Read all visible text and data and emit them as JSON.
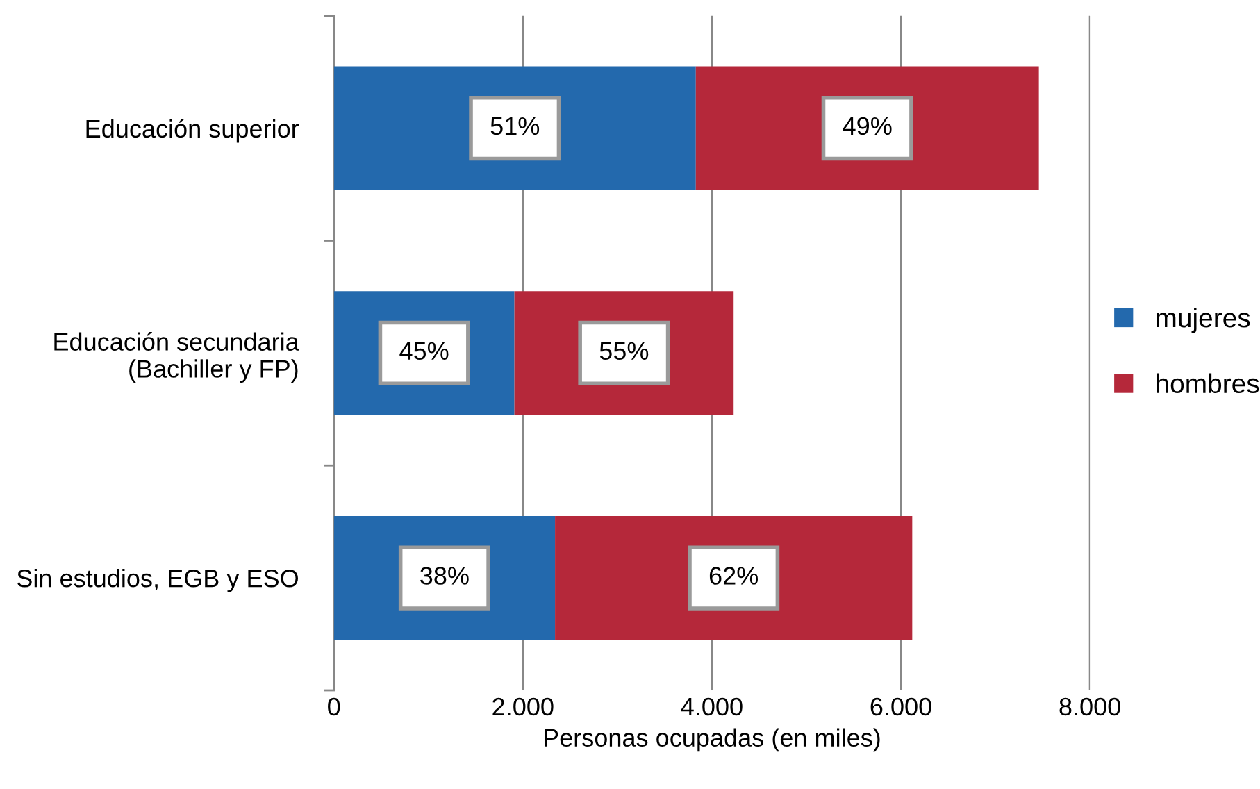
{
  "chart_data": {
    "type": "bar",
    "orientation": "horizontal",
    "stacked": true,
    "xlabel": "Personas ocupadas (en miles)",
    "categories": [
      "Educación superior",
      "Educación secundaria\n(Bachiller y FP)",
      "Sin estudios, EGB y ESO"
    ],
    "series": [
      {
        "name": "mujeres",
        "color": "#2369ad",
        "values": [
          3830,
          1910,
          2340
        ]
      },
      {
        "name": "hombres",
        "color": "#b5283a",
        "values": [
          3630,
          2320,
          3780
        ]
      }
    ],
    "annotations": [
      "51%",
      "49%",
      "45%",
      "55%",
      "38%",
      "62%"
    ],
    "xlim": [
      0,
      8000
    ],
    "xticks": [
      0,
      {
        "value": 2000,
        "label": "2.000"
      },
      {
        "value": 4000,
        "label": "4.000"
      },
      {
        "value": 6000,
        "label": "6.000"
      },
      {
        "value": 8000,
        "label": "8.000"
      }
    ],
    "grid": "x",
    "legend": "right"
  }
}
